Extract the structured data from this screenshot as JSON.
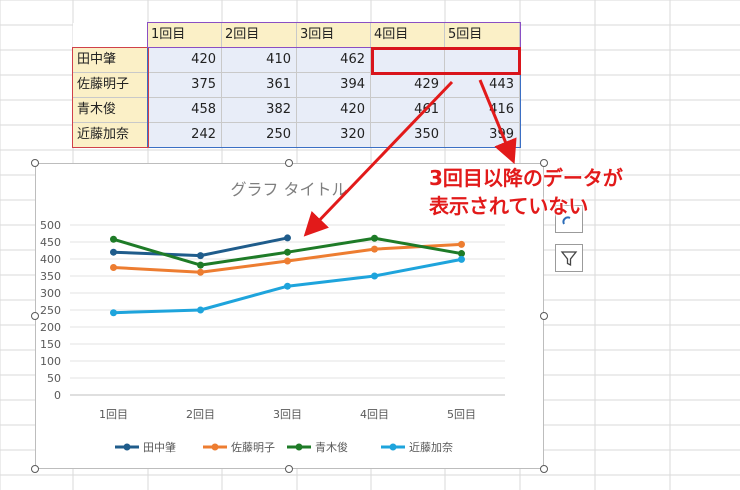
{
  "table": {
    "headers": [
      "1回目",
      "2回目",
      "3回目",
      "4回目",
      "5回目"
    ],
    "rows": [
      {
        "name": "田中肇",
        "values": [
          "420",
          "410",
          "462",
          "",
          ""
        ]
      },
      {
        "name": "佐藤明子",
        "values": [
          "375",
          "361",
          "394",
          "429",
          "443"
        ]
      },
      {
        "name": "青木俊",
        "values": [
          "458",
          "382",
          "420",
          "461",
          "416"
        ]
      },
      {
        "name": "近藤加奈",
        "values": [
          "242",
          "250",
          "320",
          "350",
          "399"
        ]
      }
    ]
  },
  "chart_data": {
    "type": "line",
    "title": "グラフ タイトル",
    "categories": [
      "1回目",
      "2回目",
      "3回目",
      "4回目",
      "5回目"
    ],
    "ylim": [
      0,
      500
    ],
    "yticks": [
      "500",
      "450",
      "400",
      "350",
      "300",
      "250",
      "200",
      "150",
      "100",
      "50",
      "0"
    ],
    "grid": true,
    "legend": "bottom",
    "series": [
      {
        "name": "田中肇",
        "color": "#1f5c8b",
        "values": [
          420,
          410,
          462,
          null,
          null
        ]
      },
      {
        "name": "佐藤明子",
        "color": "#ed7d31",
        "values": [
          375,
          361,
          394,
          429,
          443
        ]
      },
      {
        "name": "青木俊",
        "color": "#1e7b27",
        "values": [
          458,
          382,
          420,
          461,
          416
        ]
      },
      {
        "name": "近藤加奈",
        "color": "#1ea4dc",
        "values": [
          242,
          250,
          320,
          350,
          399
        ]
      }
    ]
  },
  "annotation": {
    "line1": "3回目以降のデータが",
    "line2": "表示されていない",
    "color": "#e21a1a"
  },
  "side_buttons": [
    {
      "icon": "chart-styles-icon"
    },
    {
      "icon": "chart-filter-icon"
    }
  ]
}
